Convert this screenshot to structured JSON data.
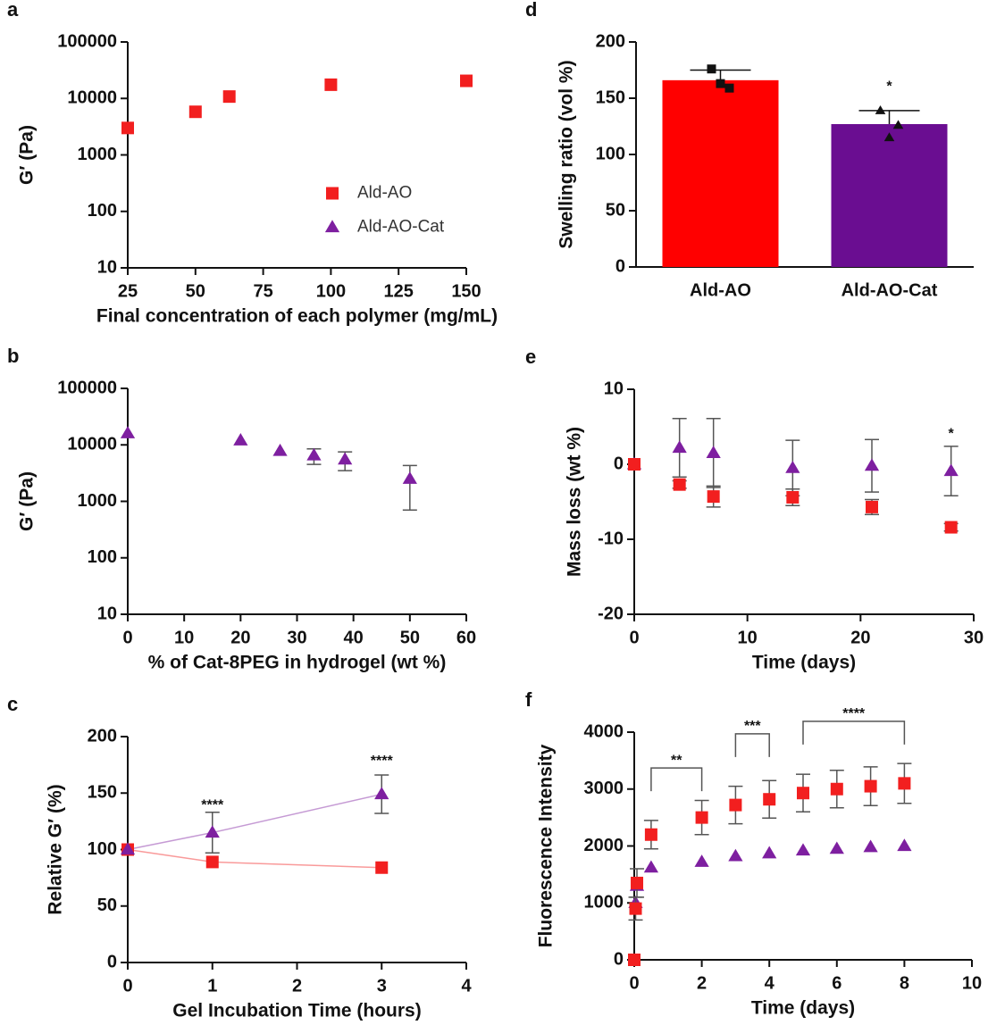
{
  "chart_data": [
    {
      "type": "scatter",
      "label": "a",
      "xlabel": "Final concentration of each polymer (mg/mL)",
      "ylabel": "G′ (Pa)",
      "yscale": "log",
      "xlim": [
        25,
        150
      ],
      "xticks": [
        25,
        50,
        75,
        100,
        125,
        150
      ],
      "ylim": [
        10,
        100000
      ],
      "yticks": [
        10,
        100,
        1000,
        10000,
        100000
      ],
      "legend": "right",
      "x": [
        25,
        50,
        62.5,
        100,
        150
      ],
      "series": [
        {
          "name": "Ald-AO",
          "color": "#f21f1f",
          "marker": "square",
          "values": [
            3000,
            5800,
            10800,
            17500,
            20500
          ]
        },
        {
          "name": "Ald-AO-Cat",
          "color": "#7e1fa0",
          "marker": "triangle",
          "values": [
            null,
            null,
            null,
            null,
            null
          ]
        }
      ]
    },
    {
      "type": "scatter",
      "label": "b",
      "xlabel": "% of Cat-8PEG in hydrogel (wt %)",
      "ylabel": "G′ (Pa)",
      "yscale": "log",
      "xlim": [
        0,
        60
      ],
      "xticks": [
        0,
        10,
        20,
        30,
        40,
        50,
        60
      ],
      "ylim": [
        10,
        100000
      ],
      "yticks": [
        10,
        100,
        1000,
        10000,
        100000
      ],
      "x": [
        0,
        20,
        27,
        33,
        38.5,
        50
      ],
      "series": [
        {
          "name": "Ald-AO-Cat",
          "color": "#7e1fa0",
          "marker": "triangle",
          "values": [
            16000,
            12000,
            7800,
            6500,
            5500,
            2500
          ],
          "errors": [
            null,
            null,
            null,
            2000,
            2000,
            1800
          ]
        }
      ]
    },
    {
      "type": "line",
      "label": "c",
      "xlabel": "Gel Incubation Time (hours)",
      "ylabel": "Relative G′ (%)",
      "xlim": [
        0,
        4
      ],
      "xticks": [
        0,
        1,
        2,
        3,
        4
      ],
      "ylim": [
        0,
        200
      ],
      "yticks": [
        0,
        50,
        100,
        150,
        200
      ],
      "x": [
        0,
        1,
        3
      ],
      "series": [
        {
          "name": "Ald-AO",
          "color": "#f21f1f",
          "marker": "square",
          "values": [
            100,
            89,
            84
          ]
        },
        {
          "name": "Ald-AO-Cat",
          "color": "#7e1fa0",
          "marker": "triangle",
          "values": [
            100,
            115,
            149
          ],
          "errors": [
            null,
            18,
            17
          ]
        }
      ],
      "annotations": [
        {
          "text": "****",
          "x": 1,
          "y": 139
        },
        {
          "text": "****",
          "x": 3,
          "y": 178
        }
      ]
    },
    {
      "type": "bar",
      "label": "d",
      "ylabel": "Swelling ratio (vol %)",
      "ylim": [
        0,
        200
      ],
      "yticks": [
        0,
        50,
        100,
        150,
        200
      ],
      "categories": [
        "Ald-AO",
        "Ald-AO-Cat"
      ],
      "values": [
        166,
        127
      ],
      "errors": [
        9,
        12
      ],
      "colors": [
        "#ff0000",
        "#6a0d91"
      ],
      "markers": [
        "square",
        "triangle"
      ],
      "points": [
        [
          176,
          159,
          163
        ],
        [
          139,
          126,
          115
        ]
      ],
      "annotations": [
        {
          "text": "*",
          "x": 1,
          "y": 160
        }
      ]
    },
    {
      "type": "scatter",
      "label": "e",
      "xlabel": "Time (days)",
      "ylabel": "Mass loss (wt %)",
      "xlim": [
        0,
        30
      ],
      "xticks": [
        0,
        10,
        20,
        30
      ],
      "ylim": [
        -20,
        10
      ],
      "yticks": [
        -20,
        -10,
        0,
        10
      ],
      "x": [
        0,
        4,
        7,
        14,
        21,
        28
      ],
      "series": [
        {
          "name": "Ald-AO-Cat",
          "color": "#7e1fa0",
          "marker": "triangle",
          "values": [
            0,
            2.2,
            1.5,
            -0.5,
            -0.2,
            -0.9
          ],
          "errors": [
            null,
            3.9,
            4.6,
            3.7,
            3.5,
            3.3
          ]
        },
        {
          "name": "Ald-AO",
          "color": "#f21f1f",
          "marker": "square",
          "values": [
            0,
            -2.7,
            -4.3,
            -4.4,
            -5.7,
            -8.4
          ],
          "errors": [
            null,
            0.5,
            1.4,
            1.1,
            1.0,
            0.5
          ]
        }
      ],
      "annotations": [
        {
          "text": "*",
          "x": 28,
          "y": 4
        }
      ]
    },
    {
      "type": "scatter",
      "label": "f",
      "xlabel": "Time (days)",
      "ylabel": "Fluorescence Intensity",
      "xlim": [
        0,
        10
      ],
      "xticks": [
        0,
        2,
        4,
        6,
        8,
        10
      ],
      "ylim": [
        0,
        4000
      ],
      "yticks": [
        0,
        1000,
        2000,
        3000,
        4000
      ],
      "x": [
        0,
        0.04,
        0.08,
        0.5,
        2,
        3,
        4,
        5,
        6,
        7,
        8
      ],
      "series": [
        {
          "name": "Ald-AO-Cat",
          "color": "#7e1fa0",
          "marker": "triangle",
          "values": [
            null,
            1000,
            1300,
            1620,
            1720,
            1820,
            1870,
            1920,
            1950,
            1980,
            2000
          ]
        },
        {
          "name": "Ald-AO",
          "color": "#f21f1f",
          "marker": "square",
          "values": [
            0,
            900,
            1350,
            2200,
            2500,
            2720,
            2820,
            2930,
            3000,
            3050,
            3100
          ],
          "errors": [
            null,
            200,
            250,
            250,
            300,
            330,
            330,
            330,
            330,
            340,
            350
          ]
        }
      ],
      "brackets": [
        {
          "text": "**",
          "x": [
            0.5,
            2
          ],
          "y": 3370
        },
        {
          "text": "***",
          "x": [
            3,
            4
          ],
          "y": 3970
        },
        {
          "text": "****",
          "x": [
            5,
            8
          ],
          "y": 4190
        }
      ]
    }
  ]
}
